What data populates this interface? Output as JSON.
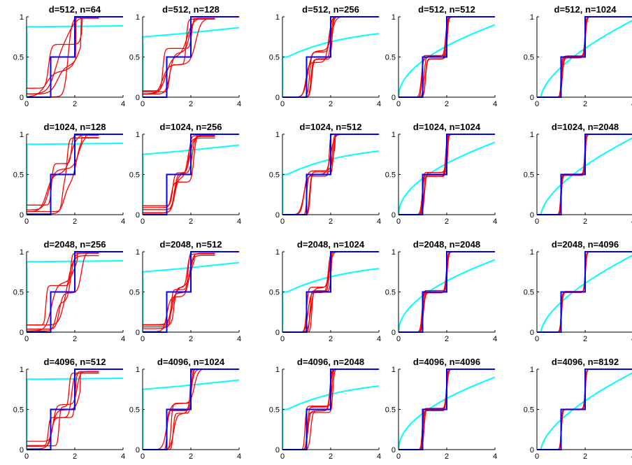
{
  "chart_data": {
    "type": "line",
    "layout": {
      "rows": 4,
      "cols": 5
    },
    "xlim": [
      0,
      4
    ],
    "ylim": [
      0,
      1
    ],
    "xticks": [
      "0",
      "2",
      "4"
    ],
    "yticks": [
      "0",
      "0.5",
      "1"
    ],
    "colors": {
      "empirical": "#ff0000",
      "limit": "#0000ff",
      "reference": "#00ffff"
    },
    "panels": [
      {
        "title": "d=512, n=64",
        "ratio": 8,
        "spread": 0.45,
        "curves": 5
      },
      {
        "title": "d=512, n=128",
        "ratio": 4,
        "spread": 0.3,
        "curves": 5
      },
      {
        "title": "d=512, n=256",
        "ratio": 2,
        "spread": 0.2,
        "curves": 5
      },
      {
        "title": "d=512, n=512",
        "ratio": 1,
        "spread": 0.08,
        "curves": 5
      },
      {
        "title": "d=512, n=1024",
        "ratio": 0.5,
        "spread": 0.04,
        "curves": 5
      },
      {
        "title": "d=1024, n=128",
        "ratio": 8,
        "spread": 0.4,
        "curves": 5
      },
      {
        "title": "d=1024, n=256",
        "ratio": 4,
        "spread": 0.25,
        "curves": 5
      },
      {
        "title": "d=1024, n=512",
        "ratio": 2,
        "spread": 0.18,
        "curves": 5
      },
      {
        "title": "d=1024, n=1024",
        "ratio": 1,
        "spread": 0.07,
        "curves": 5
      },
      {
        "title": "d=1024, n=2048",
        "ratio": 0.5,
        "spread": 0.03,
        "curves": 5
      },
      {
        "title": "d=2048, n=256",
        "ratio": 8,
        "spread": 0.35,
        "curves": 5
      },
      {
        "title": "d=2048, n=512",
        "ratio": 4,
        "spread": 0.22,
        "curves": 5
      },
      {
        "title": "d=2048, n=1024",
        "ratio": 2,
        "spread": 0.15,
        "curves": 5
      },
      {
        "title": "d=2048, n=2048",
        "ratio": 1,
        "spread": 0.05,
        "curves": 5
      },
      {
        "title": "d=2048, n=4096",
        "ratio": 0.5,
        "spread": 0.02,
        "curves": 5
      },
      {
        "title": "d=4096, n=512",
        "ratio": 8,
        "spread": 0.3,
        "curves": 5
      },
      {
        "title": "d=4096, n=1024",
        "ratio": 4,
        "spread": 0.2,
        "curves": 5
      },
      {
        "title": "d=4096, n=2048",
        "ratio": 2,
        "spread": 0.12,
        "curves": 5
      },
      {
        "title": "d=4096, n=4096",
        "ratio": 1,
        "spread": 0.04,
        "curves": 5
      },
      {
        "title": "d=4096, n=8192",
        "ratio": 0.5,
        "spread": 0.015,
        "curves": 5
      }
    ],
    "limit_cdf": {
      "x": [
        0,
        1,
        1,
        2,
        2,
        4
      ],
      "y": [
        0,
        0,
        0.5,
        0.5,
        1,
        1
      ]
    }
  }
}
